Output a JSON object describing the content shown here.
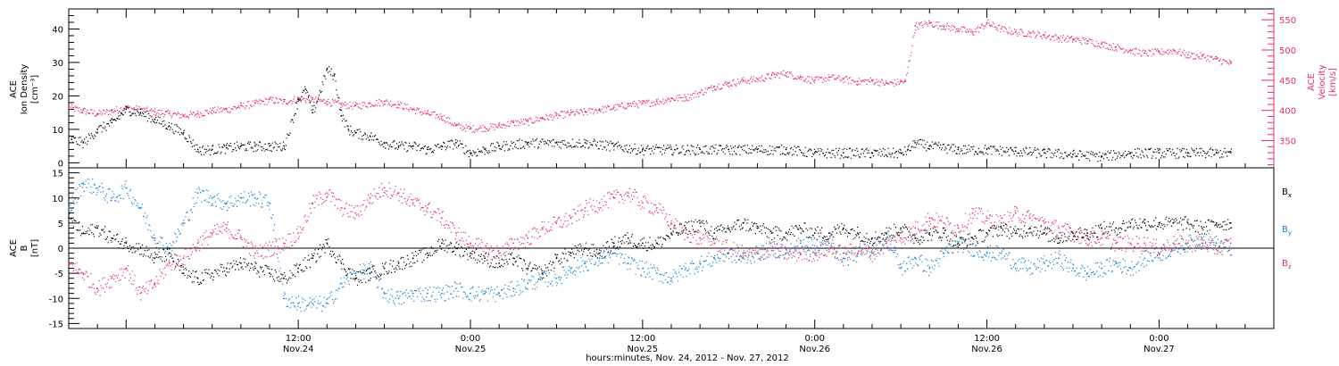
{
  "colors": {
    "black": "#000000",
    "red": "#e8305e",
    "blue": "#1a7fd6"
  },
  "chart_data": [
    {
      "type": "scatter",
      "panel": "top",
      "ylabel_left": [
        "ACE",
        "Ion Density",
        "[cm⁻³]"
      ],
      "ylabel_right": [
        "ACE",
        "Velocity",
        "[km/s]"
      ],
      "ylim_left": [
        -1.5,
        46
      ],
      "ylim_right": [
        305,
        568
      ],
      "yticks_left": [
        0,
        10,
        20,
        30,
        40
      ],
      "yticks_right": [
        350,
        400,
        450,
        500,
        550
      ],
      "xlim_hours": [
        -4,
        80
      ],
      "series": [
        {
          "name": "",
          "axis": "left",
          "color": "#000000",
          "x": [
            -3.8,
            -3,
            -2,
            -1,
            0,
            1,
            2,
            3,
            4,
            5,
            6,
            7,
            8,
            9,
            10,
            11,
            12,
            12.5,
            13,
            14,
            14.5,
            15,
            15.5,
            16,
            17,
            18,
            19,
            20,
            21,
            22,
            23,
            24,
            25,
            26,
            28,
            30,
            32,
            34,
            36,
            38,
            40,
            42,
            44,
            46,
            48,
            50,
            52,
            54,
            54.5,
            55,
            56,
            58,
            60,
            62,
            64,
            66,
            68,
            70,
            72,
            74,
            76,
            77
          ],
          "y": [
            7,
            6,
            10,
            12,
            16,
            15,
            13,
            11,
            9,
            4,
            4,
            4.5,
            5,
            5,
            5,
            5,
            19,
            22,
            15,
            28,
            26,
            14,
            10,
            9,
            8,
            6,
            5,
            5,
            4,
            5,
            6,
            3,
            4,
            5,
            6,
            6,
            6,
            5,
            4,
            4,
            4,
            4,
            4,
            4,
            3,
            3,
            3,
            3,
            4,
            6,
            5,
            4,
            4,
            3.5,
            3,
            2.5,
            2,
            3,
            3,
            3,
            3,
            3
          ]
        },
        {
          "name": "",
          "axis": "right",
          "color": "#e8305e",
          "x": [
            -4,
            -3,
            -2,
            -1,
            0,
            1,
            2,
            3,
            4,
            5,
            6,
            7,
            8,
            9,
            10,
            11,
            12,
            13,
            14,
            15,
            16,
            17,
            18,
            19,
            20,
            21,
            22,
            23,
            24,
            25,
            26,
            27,
            28,
            29,
            30,
            31,
            32,
            33,
            34,
            35,
            36,
            37,
            38,
            39,
            40,
            41,
            42,
            43,
            44,
            45,
            46,
            47,
            48,
            49,
            50,
            51,
            52,
            53,
            54,
            54.3,
            55,
            56,
            57,
            58,
            59,
            60,
            61,
            62,
            63,
            64,
            65,
            66,
            67,
            68,
            69,
            70,
            71,
            72,
            73,
            74,
            75,
            76,
            77
          ],
          "y": [
            405,
            400,
            395,
            400,
            405,
            402,
            398,
            395,
            392,
            395,
            400,
            402,
            408,
            412,
            418,
            415,
            420,
            418,
            415,
            410,
            408,
            412,
            415,
            410,
            402,
            395,
            390,
            375,
            370,
            372,
            375,
            380,
            382,
            388,
            392,
            396,
            398,
            402,
            405,
            410,
            412,
            415,
            420,
            422,
            430,
            440,
            445,
            450,
            452,
            458,
            462,
            455,
            450,
            455,
            452,
            448,
            450,
            445,
            448,
            448,
            540,
            545,
            540,
            535,
            530,
            545,
            535,
            530,
            528,
            525,
            520,
            518,
            515,
            510,
            505,
            500,
            495,
            497,
            500,
            492,
            490,
            485,
            478
          ]
        }
      ]
    },
    {
      "type": "scatter",
      "panel": "bottom",
      "ylabel_left": [
        "ACE",
        "B",
        "[nT]"
      ],
      "ylim": [
        -16,
        16
      ],
      "yticks": [
        -15,
        -10,
        -5,
        0,
        5,
        10,
        15
      ],
      "xlim_hours": [
        -4,
        80
      ],
      "zero_line": true,
      "legend": [
        "Bₓ",
        "Bᵧ",
        "B_z"
      ],
      "legend_display": [
        {
          "base": "B",
          "sub": "x",
          "color": "#000000"
        },
        {
          "base": "B",
          "sub": "y",
          "color": "#1a7fd6"
        },
        {
          "base": "B",
          "sub": "z",
          "color": "#e8305e"
        }
      ],
      "series": [
        {
          "name": "Bₓ",
          "color": "#000000",
          "x": [
            -4,
            -3,
            -2,
            -1,
            0,
            1,
            2,
            3,
            4,
            5,
            6,
            7,
            8,
            9,
            10,
            11,
            12,
            13,
            14,
            15,
            16,
            17,
            18,
            19,
            20,
            21,
            22,
            23,
            24,
            25,
            26,
            27,
            28,
            29,
            30,
            31,
            32,
            33,
            34,
            35,
            36,
            37,
            38,
            39,
            40,
            41,
            42,
            43,
            44,
            45,
            46,
            47,
            48,
            49,
            50,
            51,
            52,
            53,
            54,
            55,
            56,
            57,
            58,
            59,
            60,
            61,
            62,
            63,
            64,
            65,
            66,
            67,
            68,
            69,
            70,
            71,
            72,
            73,
            74,
            75,
            76,
            77
          ],
          "y": [
            6,
            3,
            4,
            2,
            1,
            0,
            -2,
            -1,
            -5,
            -6,
            -5,
            -4,
            -3,
            -4,
            -5,
            -6,
            -4,
            -2,
            1,
            -3,
            -6,
            -5,
            -4,
            -3,
            -2,
            -1,
            1,
            0,
            -1,
            -2,
            -3,
            -2,
            -4,
            -5,
            -2,
            -1,
            0,
            -1,
            1,
            2,
            1,
            1,
            3,
            4,
            5,
            3,
            4,
            5,
            4,
            3,
            3,
            4,
            3,
            3,
            4,
            3,
            2,
            3,
            4,
            2,
            3,
            3,
            1,
            2,
            3,
            4,
            3,
            4,
            3,
            2,
            3,
            3,
            4,
            4,
            5,
            5,
            5,
            5,
            5,
            4,
            5,
            5
          ]
        },
        {
          "name": "Bᵧ",
          "color": "#1a7fd6",
          "x": [
            -4,
            -3,
            -2,
            -1,
            0,
            1,
            2,
            3,
            4,
            5,
            6,
            7,
            8,
            9,
            10,
            11,
            12,
            13,
            14,
            15,
            16,
            17,
            18,
            19,
            20,
            21,
            22,
            23,
            24,
            25,
            26,
            27,
            28,
            29,
            30,
            31,
            32,
            33,
            34,
            35,
            36,
            37,
            38,
            39,
            40,
            41,
            42,
            43,
            44,
            45,
            46,
            47,
            48,
            49,
            50,
            51,
            52,
            53,
            54,
            55,
            56,
            57,
            58,
            59,
            60,
            61,
            62,
            63,
            64,
            65,
            66,
            67,
            68,
            69,
            70,
            71,
            72,
            73,
            74,
            75,
            76,
            77
          ],
          "y": [
            8,
            13,
            12,
            10,
            12,
            8,
            2,
            0,
            5,
            11,
            10,
            9,
            10,
            10,
            9,
            -10,
            -11,
            -11,
            -11,
            -7,
            -5,
            -4,
            -9,
            -10,
            -9,
            -9,
            -9,
            -8,
            -9,
            -9,
            -9,
            -8,
            -7,
            -6,
            -6,
            -4,
            -3,
            -2,
            -1,
            -3,
            -4,
            -5,
            -6,
            -4,
            -3,
            -2,
            -1,
            -2,
            -1,
            0,
            -1,
            1,
            0,
            1,
            -2,
            -1,
            0,
            2,
            -4,
            -2,
            -4,
            -1,
            1,
            0,
            -1,
            -1,
            -3,
            -4,
            -3,
            -2,
            -4,
            -5,
            -4,
            -3,
            -4,
            -2,
            -1,
            0,
            1,
            2,
            1,
            0
          ]
        },
        {
          "name": "B_z",
          "color": "#e8305e",
          "x": [
            -4,
            -3,
            -2,
            -1,
            0,
            1,
            2,
            3,
            4,
            5,
            6,
            7,
            8,
            9,
            10,
            11,
            12,
            13,
            14,
            15,
            16,
            17,
            18,
            19,
            20,
            21,
            22,
            23,
            24,
            25,
            26,
            27,
            28,
            29,
            30,
            31,
            32,
            33,
            34,
            35,
            36,
            37,
            38,
            39,
            40,
            41,
            42,
            43,
            44,
            45,
            46,
            47,
            48,
            49,
            50,
            51,
            52,
            53,
            54,
            55,
            56,
            57,
            58,
            59,
            60,
            61,
            62,
            63,
            64,
            65,
            66,
            67,
            68,
            69,
            70,
            71,
            72,
            73,
            74,
            75,
            76,
            77
          ],
          "y": [
            -3,
            -5,
            -8,
            -6,
            -4,
            -9,
            -7,
            -3,
            -2,
            1,
            3,
            4,
            2,
            -1,
            0,
            1,
            3,
            9,
            11,
            8,
            7,
            10,
            12,
            11,
            9,
            8,
            6,
            3,
            1,
            0,
            -1,
            1,
            2,
            4,
            5,
            6,
            8,
            9,
            10,
            11,
            9,
            8,
            5,
            3,
            2,
            1,
            0,
            -1,
            -1,
            0,
            -1,
            -1,
            -1,
            0,
            -1,
            0,
            -1,
            1,
            2,
            4,
            6,
            5,
            4,
            7,
            6,
            5,
            7,
            6,
            5,
            4,
            3,
            2,
            2,
            1,
            1,
            1,
            0,
            1,
            1,
            1,
            0,
            1
          ]
        }
      ]
    }
  ],
  "x_axis": {
    "ticks": [
      {
        "hour": 12,
        "time": "12:00",
        "date": "Nov.24"
      },
      {
        "hour": 24,
        "time": "0:00",
        "date": "Nov.25"
      },
      {
        "hour": 36,
        "time": "12:00",
        "date": "Nov.25"
      },
      {
        "hour": 48,
        "time": "0:00",
        "date": "Nov.26"
      },
      {
        "hour": 60,
        "time": "12:00",
        "date": "Nov.26"
      },
      {
        "hour": 72,
        "time": "0:00",
        "date": "Nov.27"
      }
    ],
    "title": "hours:minutes, Nov. 24, 2012 - Nov. 27, 2012"
  }
}
